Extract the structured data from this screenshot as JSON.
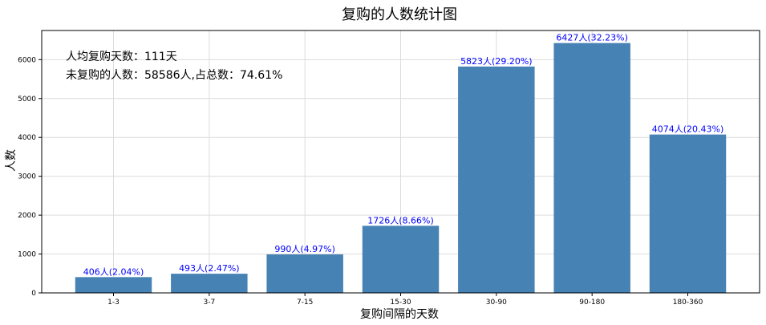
{
  "chart_data": {
    "type": "bar",
    "title": "复购的人数统计图",
    "xlabel": "复购间隔的天数",
    "ylabel": "人数",
    "categories": [
      "1-3",
      "3-7",
      "7-15",
      "15-30",
      "30-90",
      "90-180",
      "180-360"
    ],
    "values": [
      406,
      493,
      990,
      1726,
      5823,
      6427,
      4074
    ],
    "data_labels": [
      "406人(2.04%)",
      "493人(2.47%)",
      "990人(4.97%)",
      "1726人(8.66%)",
      "5823人(29.20%)",
      "6427人(32.23%)",
      "4074人(20.43%)"
    ],
    "yticks": [
      0,
      1000,
      2000,
      3000,
      4000,
      5000,
      6000
    ],
    "ylim": [
      0,
      6750
    ],
    "grid": true,
    "bar_color": "#4682b4",
    "label_color": "#0000ff",
    "annotations": [
      "人均复购天数：111天",
      "未复购的人数：58586人,占总数：74.61%"
    ]
  }
}
